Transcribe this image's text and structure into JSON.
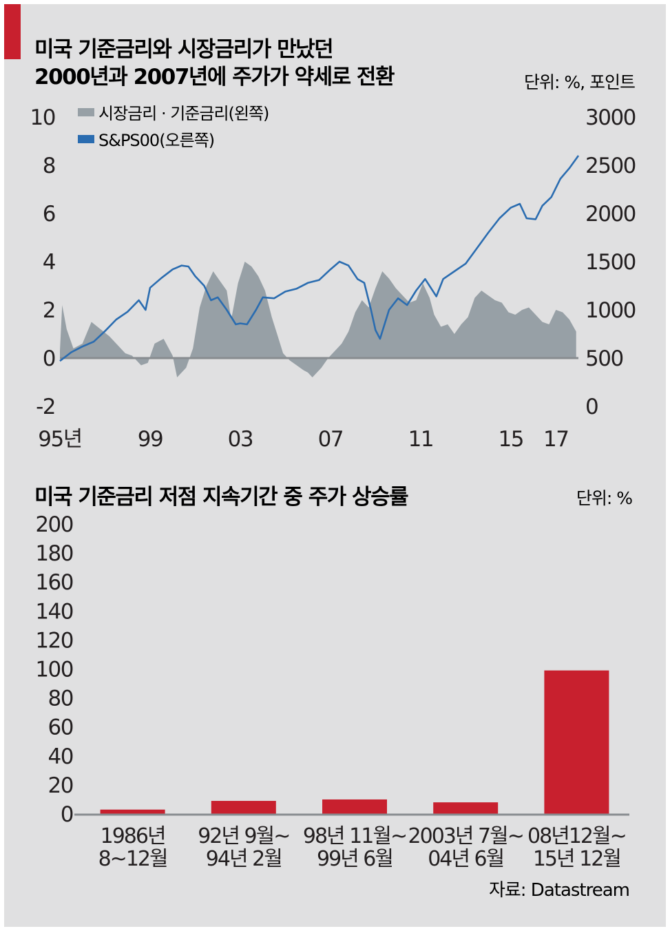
{
  "colors": {
    "background": "#e0e0e1",
    "accent_red": "#c8202e",
    "bar_red": "#c8202e",
    "spread_gray": "#97a0a6",
    "sp500_blue": "#2a6cb0",
    "axis_gray": "#888c90"
  },
  "chart_data": [
    {
      "type": "line",
      "title_line1": "미국 기준금리와 시장금리가 만났던",
      "title_line2": "2000년과 2007년에 주가가 약세로 전환",
      "unit_label": "단위: %, 포인트",
      "x_tick_labels": [
        "95년",
        "99",
        "03",
        "07",
        "11",
        "15",
        "17"
      ],
      "x_tick_years": [
        1995,
        1999,
        2003,
        2007,
        2011,
        2015,
        2017
      ],
      "xlim": [
        1995.0,
        2018.0
      ],
      "y_left_ticks": [
        "10",
        "8",
        "6",
        "4",
        "2",
        "0",
        "-2"
      ],
      "y_left_lim": [
        -2,
        10
      ],
      "y_right_ticks": [
        "3000",
        "2500",
        "2000",
        "1500",
        "1000",
        "500",
        "0"
      ],
      "y_right_lim": [
        0,
        3000
      ],
      "legend_position": "top-left",
      "series": [
        {
          "name": "시장금리 · 기준금리(왼쪽)",
          "kind": "area",
          "axis": "left",
          "x": [
            1995.0,
            1995.1,
            1995.3,
            1995.6,
            1996.0,
            1996.4,
            1996.8,
            1997.2,
            1997.6,
            1997.9,
            1998.2,
            1998.6,
            1998.9,
            1999.2,
            1999.6,
            2000.0,
            2000.2,
            2000.6,
            2000.9,
            2001.2,
            2001.5,
            2001.8,
            2002.1,
            2002.4,
            2002.6,
            2002.9,
            2003.2,
            2003.5,
            2003.8,
            2004.1,
            2004.4,
            2004.7,
            2004.9,
            2005.2,
            2005.5,
            2005.8,
            2006.0,
            2006.2,
            2006.6,
            2006.9,
            2007.2,
            2007.5,
            2007.8,
            2008.1,
            2008.4,
            2008.7,
            2009.0,
            2009.3,
            2009.6,
            2009.9,
            2010.2,
            2010.5,
            2010.8,
            2011.1,
            2011.4,
            2011.6,
            2011.9,
            2012.2,
            2012.5,
            2012.8,
            2013.1,
            2013.4,
            2013.7,
            2014.0,
            2014.3,
            2014.6,
            2014.9,
            2015.2,
            2015.5,
            2015.8,
            2016.1,
            2016.4,
            2016.7,
            2017.0,
            2017.3,
            2017.6,
            2017.9
          ],
          "values": [
            0.3,
            2.2,
            1.2,
            0.4,
            0.6,
            1.5,
            1.2,
            0.9,
            0.5,
            0.2,
            0.1,
            -0.3,
            -0.2,
            0.6,
            0.8,
            0.1,
            -0.8,
            -0.4,
            0.4,
            2.1,
            3.0,
            3.6,
            3.2,
            2.8,
            1.6,
            3.1,
            4.0,
            3.8,
            3.4,
            2.8,
            1.7,
            0.8,
            0.2,
            -0.1,
            -0.3,
            -0.5,
            -0.6,
            -0.8,
            -0.4,
            0.0,
            0.3,
            0.6,
            1.1,
            1.9,
            2.4,
            2.1,
            2.9,
            3.6,
            3.3,
            2.9,
            2.6,
            2.3,
            2.4,
            3.1,
            2.5,
            1.8,
            1.3,
            1.4,
            1.0,
            1.4,
            1.7,
            2.5,
            2.8,
            2.6,
            2.4,
            2.3,
            1.9,
            1.8,
            2.0,
            2.1,
            1.8,
            1.5,
            1.4,
            2.0,
            1.9,
            1.6,
            1.1
          ]
        },
        {
          "name": "S&PS00(오른쪽)",
          "kind": "line",
          "axis": "right",
          "x": [
            1995.0,
            1995.5,
            1996.0,
            1996.5,
            1997.0,
            1997.5,
            1998.0,
            1998.5,
            1998.8,
            1999.0,
            1999.5,
            2000.0,
            2000.4,
            2000.7,
            2001.0,
            2001.4,
            2001.7,
            2002.0,
            2002.4,
            2002.8,
            2003.0,
            2003.3,
            2003.7,
            2004.0,
            2004.5,
            2005.0,
            2005.5,
            2006.0,
            2006.5,
            2007.0,
            2007.4,
            2007.8,
            2008.2,
            2008.5,
            2008.8,
            2009.0,
            2009.2,
            2009.6,
            2010.0,
            2010.4,
            2010.8,
            2011.2,
            2011.7,
            2012.0,
            2012.5,
            2013.0,
            2013.5,
            2014.0,
            2014.5,
            2015.0,
            2015.4,
            2015.7,
            2016.1,
            2016.4,
            2016.8,
            2017.2,
            2017.6,
            2018.0
          ],
          "values": [
            470,
            560,
            620,
            670,
            780,
            900,
            980,
            1100,
            1000,
            1230,
            1330,
            1420,
            1460,
            1450,
            1350,
            1250,
            1100,
            1130,
            1000,
            850,
            860,
            850,
            1000,
            1130,
            1120,
            1190,
            1220,
            1280,
            1310,
            1420,
            1500,
            1460,
            1320,
            1280,
            1000,
            790,
            700,
            1000,
            1120,
            1050,
            1200,
            1320,
            1140,
            1320,
            1400,
            1480,
            1640,
            1800,
            1950,
            2060,
            2100,
            1950,
            1940,
            2080,
            2170,
            2360,
            2470,
            2600
          ]
        }
      ]
    },
    {
      "type": "bar",
      "title": "미국 기준금리 저점 지속기간 중 주가 상승률",
      "unit_label": "단위: %",
      "categories": [
        [
          "1986년",
          "8~12월"
        ],
        [
          "92년 9월~",
          "94년 2월"
        ],
        [
          "98년 11월~",
          "99년 6월"
        ],
        [
          "2003년 7월~",
          "04년 6월"
        ],
        [
          "08년12월~",
          "15년 12월"
        ]
      ],
      "values": [
        3,
        9,
        10,
        8,
        99
      ],
      "y_ticks": [
        "200",
        "180",
        "160",
        "140",
        "120",
        "100",
        "80",
        "60",
        "40",
        "20",
        "0"
      ],
      "ylim": [
        0,
        200
      ]
    }
  ],
  "source": "자료: Datastream"
}
